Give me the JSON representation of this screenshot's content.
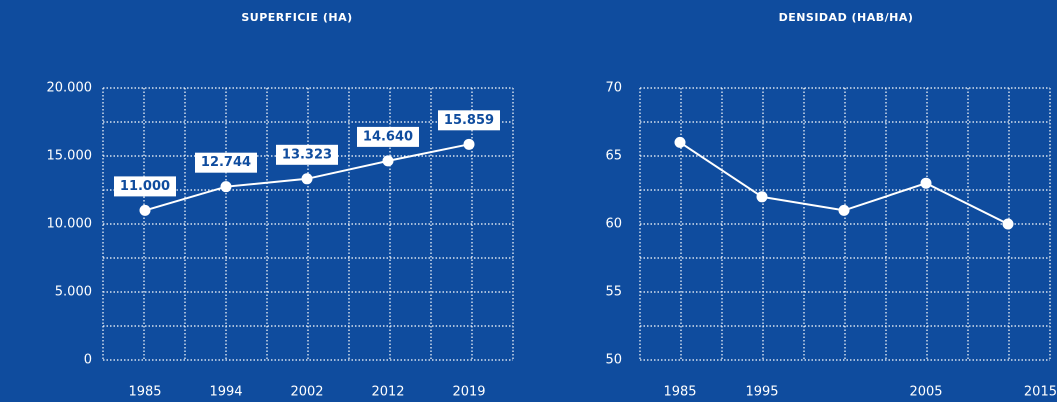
{
  "chart_data": [
    {
      "type": "line",
      "title": "SUPERFICIE (HA)",
      "categories": [
        "1985",
        "1994",
        "2002",
        "2012",
        "2019"
      ],
      "series": [
        {
          "name": "Superficie",
          "color": "#ffffff",
          "values": [
            11000,
            12744,
            13323,
            14640,
            15859
          ],
          "value_labels": [
            "11.000",
            "12.744",
            "13.323",
            "14.640",
            "15.859"
          ]
        }
      ],
      "ylim": [
        0,
        20000
      ],
      "yticks": [
        0,
        {
          "value": 5000,
          "label": "5.000"
        },
        {
          "value": 10000,
          "label": "10.000"
        },
        {
          "value": 15000,
          "label": "15.000"
        },
        {
          "value": 20000,
          "label": "20.000"
        }
      ],
      "grid": true
    },
    {
      "type": "line",
      "title": "DENSIDAD (HAB/HA)",
      "categories": [
        "1985",
        "1995",
        null,
        "2005",
        null,
        "2015"
      ],
      "series": [
        {
          "name": "Densidad",
          "color": "#ffffff",
          "values": [
            66,
            62,
            61,
            63,
            60,
            null
          ]
        }
      ],
      "ylim": [
        50,
        70
      ],
      "yticks": [
        50,
        55,
        60,
        65,
        70
      ],
      "grid": true
    }
  ]
}
